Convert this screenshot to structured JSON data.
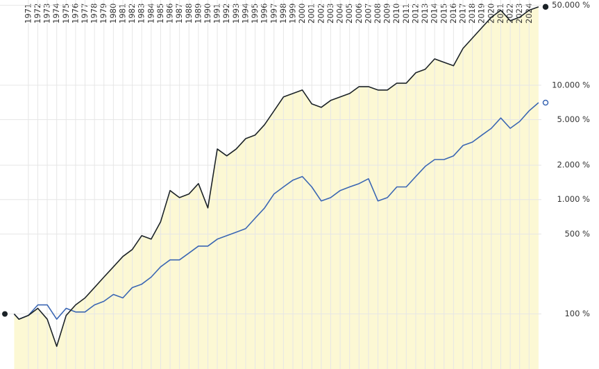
{
  "chart_data": {
    "type": "line",
    "log_scale": true,
    "grid": true,
    "area_fill": "#fcf8d4",
    "x": [
      1969.5,
      1970,
      1971,
      1972,
      1973,
      1974,
      1975,
      1976,
      1977,
      1978,
      1979,
      1980,
      1981,
      1982,
      1983,
      1984,
      1985,
      1986,
      1987,
      1988,
      1989,
      1990,
      1991,
      1992,
      1993,
      1994,
      1995,
      1996,
      1997,
      1998,
      1999,
      2000,
      2001,
      2002,
      2003,
      2004,
      2005,
      2006,
      2007,
      2008,
      2009,
      2010,
      2011,
      2012,
      2013,
      2014,
      2015,
      2016,
      2017,
      2018,
      2019,
      2020,
      2021,
      2022,
      2023,
      2024,
      2025
    ],
    "series": [
      {
        "color": "#1b2227",
        "values": [
          100,
          90,
          97,
          112,
          90,
          52,
          97,
          120,
          138,
          170,
          210,
          258,
          318,
          366,
          484,
          451,
          640,
          1200,
          1040,
          1120,
          1380,
          845,
          2770,
          2410,
          2770,
          3410,
          3660,
          4520,
          5970,
          7890,
          8460,
          9070,
          6860,
          6400,
          7360,
          7890,
          8460,
          9720,
          9720,
          9070,
          9070,
          10420,
          10420,
          12850,
          13780,
          16990,
          15850,
          14790,
          20950,
          25820,
          31850,
          39260,
          45190,
          36610,
          39260,
          45190,
          48400
        ]
      },
      {
        "color": "#3a66b3",
        "values": [
          100,
          90,
          97,
          120,
          120,
          90,
          112,
          104,
          104,
          120,
          129,
          148,
          138,
          170,
          182,
          210,
          258,
          297,
          297,
          341,
          392,
          392,
          451,
          484,
          519,
          557,
          687,
          845,
          1120,
          1290,
          1480,
          1590,
          1290,
          973,
          1040,
          1200,
          1290,
          1380,
          1520,
          973,
          1040,
          1290,
          1290,
          1590,
          1950,
          2240,
          2240,
          2410,
          2970,
          3180,
          3660,
          4200,
          5170,
          4200,
          4820,
          5970,
          7040
        ]
      }
    ],
    "xlim": [
      1968,
      2025.3
    ],
    "xticks": [
      1971,
      1972,
      1973,
      1974,
      1975,
      1976,
      1977,
      1978,
      1979,
      1980,
      1981,
      1982,
      1983,
      1984,
      1985,
      1986,
      1987,
      1988,
      1989,
      1990,
      1991,
      1992,
      1993,
      1994,
      1995,
      1996,
      1997,
      1998,
      1999,
      2000,
      2001,
      2002,
      2003,
      2004,
      2005,
      2006,
      2007,
      2008,
      2009,
      2010,
      2011,
      2012,
      2013,
      2014,
      2015,
      2016,
      2017,
      2018,
      2019,
      2020,
      2021,
      2022,
      2023,
      2024
    ],
    "ylim": [
      33,
      55600
    ],
    "yticks": [
      {
        "value": 100,
        "label": "100 %"
      },
      {
        "value": 500,
        "label": "500 %"
      },
      {
        "value": 1000,
        "label": "1.000 %"
      },
      {
        "value": 2000,
        "label": "2.000 %"
      },
      {
        "value": 5000,
        "label": "5.000 %"
      },
      {
        "value": 10000,
        "label": "10.000 %"
      },
      {
        "value": 50000,
        "label": "50.000 %"
      }
    ]
  }
}
